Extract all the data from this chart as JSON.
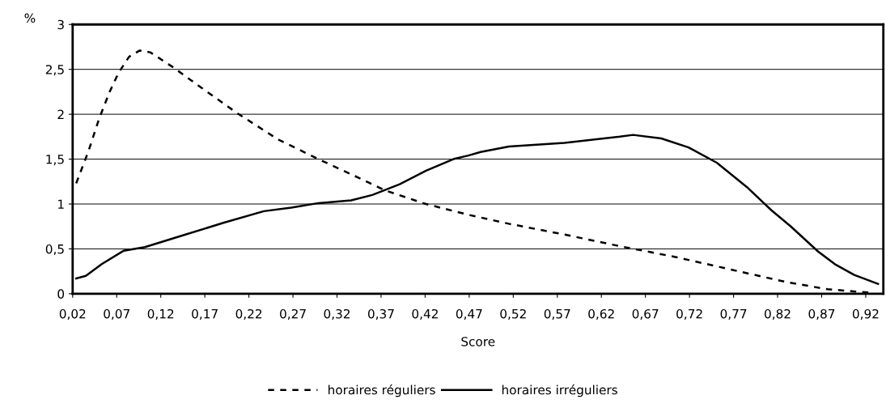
{
  "chart_data": {
    "type": "line",
    "xlabel": "Score",
    "ylabel": "%",
    "xlim": [
      0.02,
      0.94
    ],
    "xticks": [
      {
        "value": 0.02,
        "label": "0,02"
      },
      {
        "value": 0.07,
        "label": "0,07"
      },
      {
        "value": 0.12,
        "label": "0,12"
      },
      {
        "value": 0.17,
        "label": "0,17"
      },
      {
        "value": 0.22,
        "label": "0,22"
      },
      {
        "value": 0.27,
        "label": "0,27"
      },
      {
        "value": 0.32,
        "label": "0,32"
      },
      {
        "value": 0.37,
        "label": "0,37"
      },
      {
        "value": 0.42,
        "label": "0,42"
      },
      {
        "value": 0.47,
        "label": "0,47"
      },
      {
        "value": 0.52,
        "label": "0,52"
      },
      {
        "value": 0.57,
        "label": "0,57"
      },
      {
        "value": 0.62,
        "label": "0,62"
      },
      {
        "value": 0.67,
        "label": "0,67"
      },
      {
        "value": 0.72,
        "label": "0,72"
      },
      {
        "value": 0.77,
        "label": "0,77"
      },
      {
        "value": 0.82,
        "label": "0,82"
      },
      {
        "value": 0.87,
        "label": "0,87"
      },
      {
        "value": 0.92,
        "label": "0,92"
      }
    ],
    "ylim": [
      0,
      3
    ],
    "yticks": [
      0,
      {
        "value": 0.5,
        "label": "0,5"
      },
      1,
      {
        "value": 1.5,
        "label": "1,5"
      },
      2,
      {
        "value": 2.5,
        "label": "2,5"
      },
      3
    ],
    "grid": "y",
    "legend": "bottom",
    "series": [
      {
        "name": "horaires réguliers",
        "color": "#000000",
        "line_style": "dashed",
        "x": [
          0.024,
          0.038,
          0.05,
          0.062,
          0.072,
          0.084,
          0.096,
          0.108,
          0.133,
          0.164,
          0.207,
          0.253,
          0.299,
          0.345,
          0.375,
          0.421,
          0.469,
          0.515,
          0.578,
          0.641,
          0.704,
          0.767,
          0.83,
          0.877,
          0.928
        ],
        "values": [
          1.23,
          1.59,
          1.95,
          2.25,
          2.46,
          2.64,
          2.71,
          2.69,
          2.53,
          2.31,
          2.01,
          1.72,
          1.5,
          1.29,
          1.15,
          1.0,
          0.88,
          0.78,
          0.66,
          0.53,
          0.41,
          0.27,
          0.13,
          0.05,
          0.01
        ]
      },
      {
        "name": "horaires irréguliers",
        "color": "#000000",
        "line_style": "solid",
        "x": [
          0.024,
          0.035,
          0.053,
          0.078,
          0.102,
          0.145,
          0.191,
          0.237,
          0.268,
          0.299,
          0.336,
          0.36,
          0.391,
          0.421,
          0.452,
          0.469,
          0.483,
          0.515,
          0.578,
          0.641,
          0.656,
          0.688,
          0.719,
          0.751,
          0.785,
          0.813,
          0.835,
          0.866,
          0.885,
          0.907,
          0.934
        ],
        "values": [
          0.17,
          0.2,
          0.33,
          0.48,
          0.52,
          0.65,
          0.79,
          0.92,
          0.96,
          1.01,
          1.04,
          1.1,
          1.22,
          1.37,
          1.5,
          1.54,
          1.58,
          1.64,
          1.68,
          1.75,
          1.77,
          1.73,
          1.63,
          1.46,
          1.19,
          0.93,
          0.75,
          0.47,
          0.33,
          0.21,
          0.11
        ]
      }
    ]
  }
}
